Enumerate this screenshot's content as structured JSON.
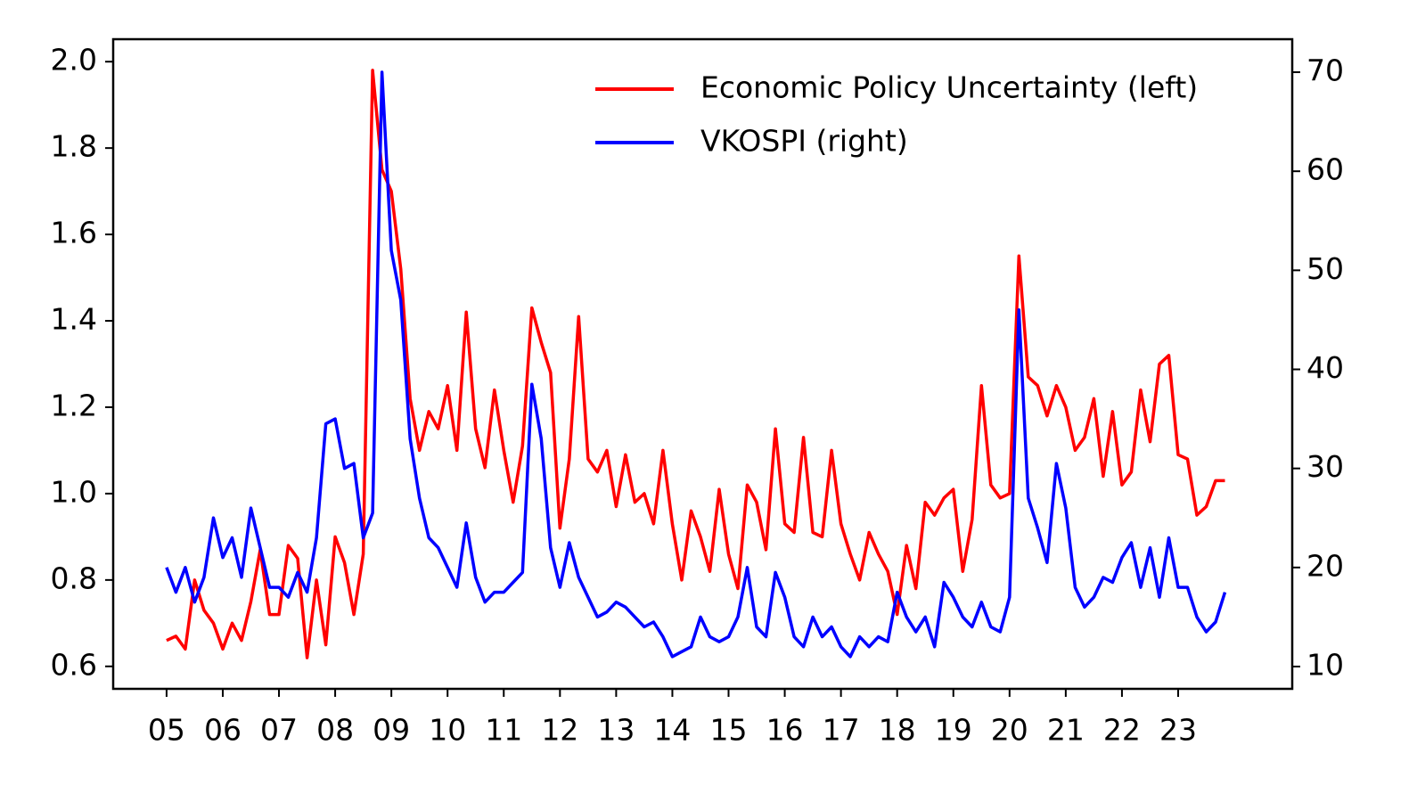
{
  "chart_data": {
    "type": "line",
    "x": [
      5,
      5.1667,
      5.3333,
      5.5,
      5.6667,
      5.8333,
      6,
      6.1667,
      6.3333,
      6.5,
      6.6667,
      6.8333,
      7,
      7.1667,
      7.3333,
      7.5,
      7.6667,
      7.8333,
      8,
      8.1667,
      8.3333,
      8.5,
      8.6667,
      8.8333,
      9,
      9.1667,
      9.3333,
      9.5,
      9.6667,
      9.8333,
      10,
      10.1667,
      10.3333,
      10.5,
      10.6667,
      10.8333,
      11,
      11.1667,
      11.3333,
      11.5,
      11.6667,
      11.8333,
      12,
      12.1667,
      12.3333,
      12.5,
      12.6667,
      12.8333,
      13,
      13.1667,
      13.3333,
      13.5,
      13.6667,
      13.8333,
      14,
      14.1667,
      14.3333,
      14.5,
      14.6667,
      14.8333,
      15,
      15.1667,
      15.3333,
      15.5,
      15.6667,
      15.8333,
      16,
      16.1667,
      16.3333,
      16.5,
      16.6667,
      16.8333,
      17,
      17.1667,
      17.3333,
      17.5,
      17.6667,
      17.8333,
      18,
      18.1667,
      18.3333,
      18.5,
      18.6667,
      18.8333,
      19,
      19.1667,
      19.3333,
      19.5,
      19.6667,
      19.8333,
      20,
      20.1667,
      20.3333,
      20.5,
      20.6667,
      20.8333,
      21,
      21.1667,
      21.3333,
      21.5,
      21.6667,
      21.8333,
      22,
      22.1667,
      22.3333,
      22.5,
      22.6667,
      22.8333,
      23,
      23.1667,
      23.3333,
      23.5,
      23.6667,
      23.8333
    ],
    "series": [
      {
        "name": "Economic Policy Uncertainty (left)",
        "color": "#ff0000",
        "axis": "y",
        "values": [
          0.66,
          0.67,
          0.64,
          0.8,
          0.73,
          0.7,
          0.64,
          0.7,
          0.66,
          0.75,
          0.87,
          0.72,
          0.72,
          0.88,
          0.85,
          0.62,
          0.8,
          0.65,
          0.9,
          0.84,
          0.72,
          0.86,
          1.98,
          1.75,
          1.7,
          1.52,
          1.22,
          1.1,
          1.19,
          1.15,
          1.25,
          1.1,
          1.42,
          1.15,
          1.06,
          1.24,
          1.1,
          0.98,
          1.11,
          1.43,
          1.35,
          1.28,
          0.92,
          1.08,
          1.41,
          1.08,
          1.05,
          1.1,
          0.97,
          1.09,
          0.98,
          1.0,
          0.93,
          1.1,
          0.93,
          0.8,
          0.96,
          0.9,
          0.82,
          1.01,
          0.86,
          0.78,
          1.02,
          0.98,
          0.87,
          1.15,
          0.93,
          0.91,
          1.13,
          0.91,
          0.9,
          1.1,
          0.93,
          0.86,
          0.8,
          0.91,
          0.86,
          0.82,
          0.72,
          0.88,
          0.78,
          0.98,
          0.95,
          0.99,
          1.01,
          0.82,
          0.94,
          1.25,
          1.02,
          0.99,
          1.0,
          1.55,
          1.27,
          1.25,
          1.18,
          1.25,
          1.2,
          1.1,
          1.13,
          1.22,
          1.04,
          1.19,
          1.02,
          1.05,
          1.24,
          1.12,
          1.3,
          1.32,
          1.09,
          1.08,
          0.95,
          0.97,
          1.03,
          1.03
        ]
      },
      {
        "name": "VKOSPI (right)",
        "color": "#0000ff",
        "axis": "y2",
        "values": [
          20,
          17.5,
          20,
          16.5,
          19,
          25,
          21,
          23,
          19,
          26,
          22,
          18,
          18,
          17,
          19.5,
          17.5,
          23,
          34.5,
          35,
          30,
          30.5,
          23,
          25.5,
          70,
          52,
          47,
          33,
          27,
          23,
          22,
          20,
          18,
          24.5,
          19,
          16.5,
          17.5,
          17.5,
          18.5,
          19.5,
          38.5,
          33,
          22,
          18,
          22.5,
          19,
          17,
          15,
          15.5,
          16.5,
          16,
          15,
          14,
          14.5,
          13,
          11,
          11.5,
          12,
          15,
          13,
          12.5,
          13,
          15,
          20,
          14,
          13,
          19.5,
          17,
          13,
          12,
          15,
          13,
          14,
          12,
          11,
          13,
          12,
          13,
          12.5,
          17.5,
          15,
          13.5,
          15,
          12,
          18.5,
          17,
          15,
          14,
          16.5,
          14,
          13.5,
          17,
          46,
          27,
          24,
          20.5,
          30.5,
          26,
          18,
          16,
          17,
          19,
          18.5,
          21,
          22.5,
          18,
          22,
          17,
          23,
          18,
          18,
          15,
          13.5,
          14.5,
          17.5
        ]
      }
    ],
    "xlim": [
      4.05,
      25.03
    ],
    "xticks": [
      {
        "value": 5,
        "label": "05"
      },
      {
        "value": 6,
        "label": "06"
      },
      {
        "value": 7,
        "label": "07"
      },
      {
        "value": 8,
        "label": "08"
      },
      {
        "value": 9,
        "label": "09"
      },
      10,
      11,
      12,
      13,
      14,
      15,
      16,
      17,
      18,
      19,
      20,
      21,
      22,
      23
    ],
    "ylim": [
      0.548,
      2.052
    ],
    "yticks": [
      0.6,
      0.8,
      {
        "value": 1,
        "label": "1.0"
      },
      1.2,
      1.4,
      1.6,
      1.8,
      {
        "value": 2,
        "label": "2.0"
      }
    ],
    "y2lim": [
      7.75,
      73.33
    ],
    "y2ticks": [
      10,
      20,
      30,
      40,
      50,
      60,
      70
    ],
    "legend": "upper right"
  }
}
